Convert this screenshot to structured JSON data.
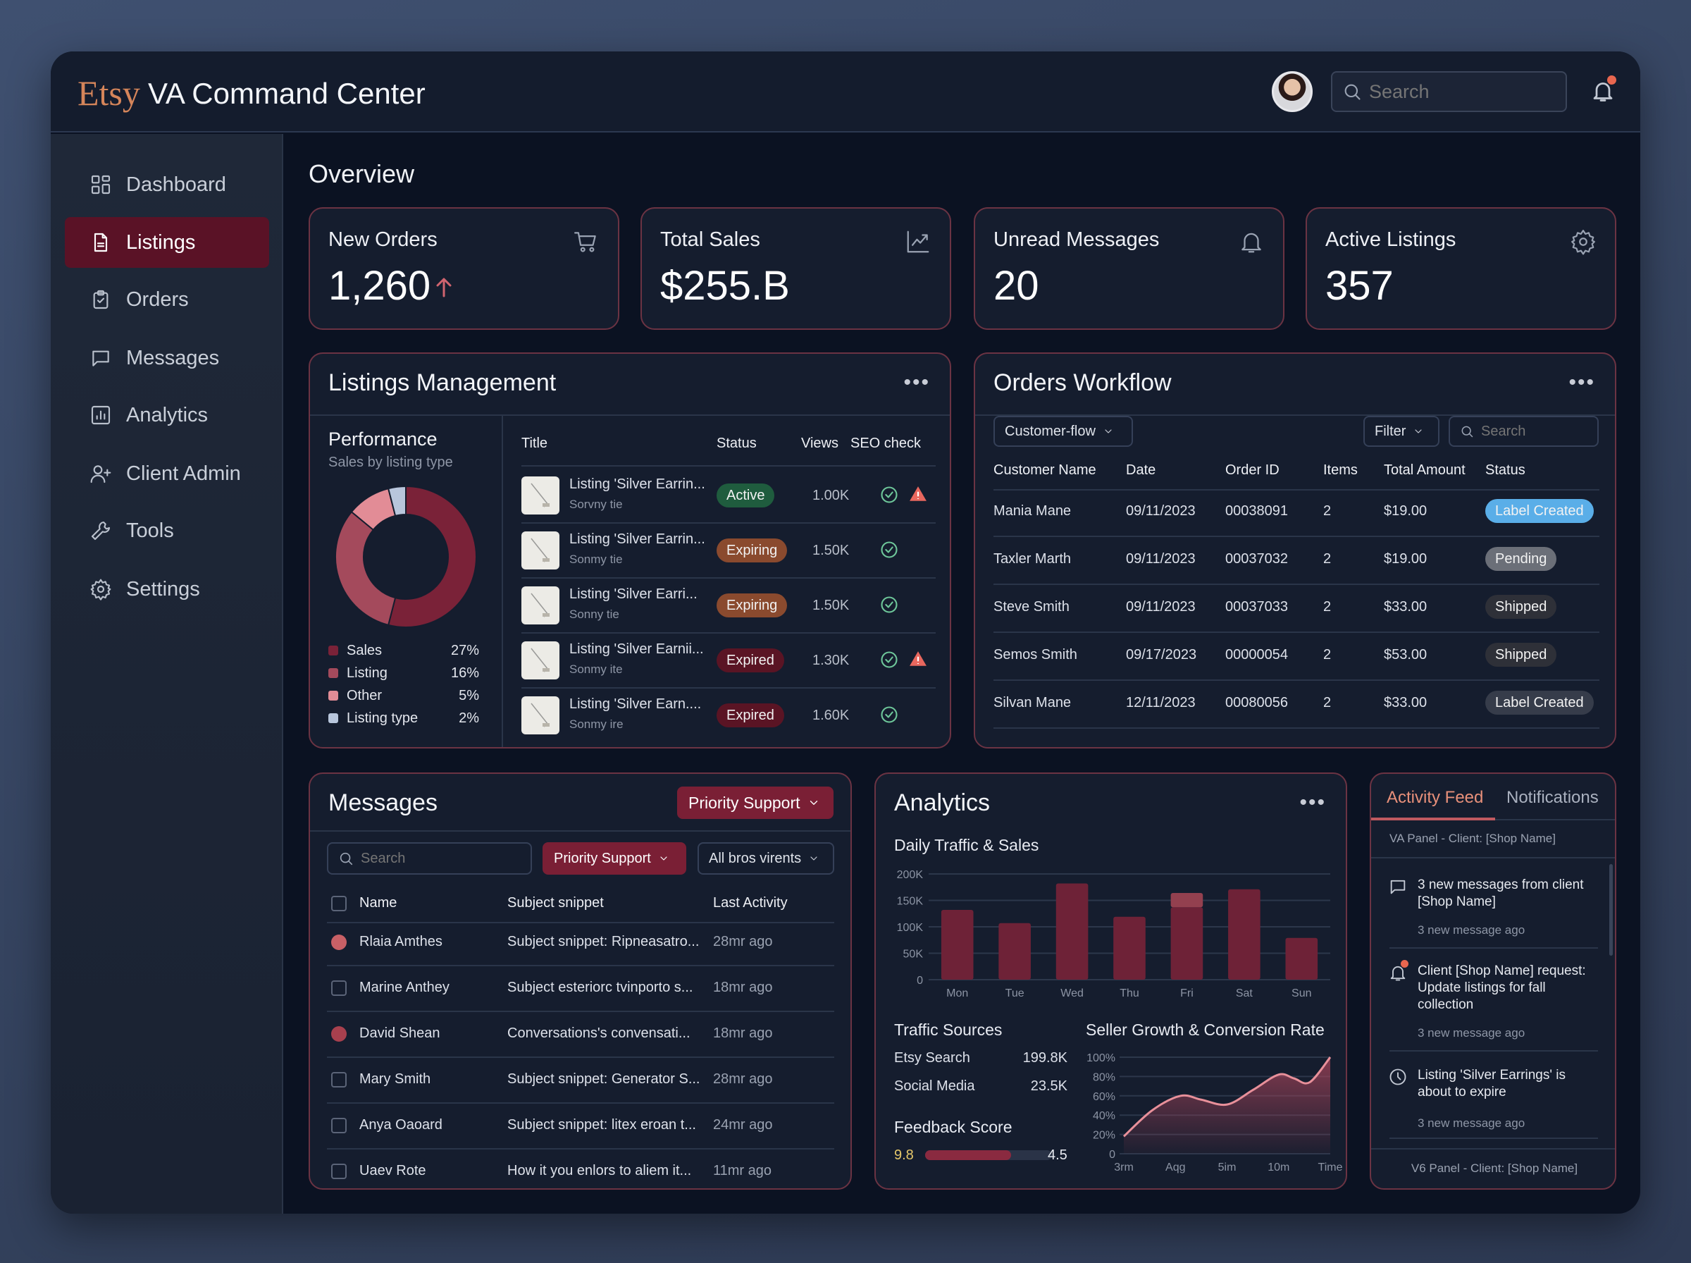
{
  "header": {
    "brand": "Etsy",
    "title": "VA Command Center",
    "search_placeholder": "Search",
    "avatar_icon": "user-avatar-icon",
    "notification_icon": "bell-icon",
    "notification_dot": true
  },
  "sidebar": {
    "items": [
      {
        "label": "Dashboard",
        "icon": "dashboard",
        "active": false
      },
      {
        "label": "Listings",
        "icon": "file",
        "active": true
      },
      {
        "label": "Orders",
        "icon": "clipboard",
        "active": false
      },
      {
        "label": "Messages",
        "icon": "message",
        "active": false
      },
      {
        "label": "Analytics",
        "icon": "chart",
        "active": false
      },
      {
        "label": "Client Admin",
        "icon": "user-plus",
        "active": false
      },
      {
        "label": "Tools",
        "icon": "wrench",
        "active": false
      },
      {
        "label": "Settings",
        "icon": "gear",
        "active": false
      }
    ]
  },
  "overview": {
    "title": "Overview",
    "kpis": [
      {
        "label": "New Orders",
        "value": "1,260",
        "icon": "cart",
        "trend": "up"
      },
      {
        "label": "Total Sales",
        "value": "$255.B",
        "icon": "trend",
        "sparkline": true
      },
      {
        "label": "Unread Messages",
        "value": "20",
        "icon": "bell"
      },
      {
        "label": "Active Listings",
        "value": "357",
        "icon": "gear"
      }
    ]
  },
  "listings": {
    "title": "Listings Management",
    "perf_title": "Performance",
    "perf_subtitle": "Sales by listing type",
    "columns": [
      "Title",
      "Status",
      "Views",
      "SEO check"
    ],
    "rows": [
      {
        "title": "Listing 'Silver Earrin...",
        "sub": "Sorvny tie",
        "status": "Active",
        "views": "1.00K",
        "seo_ok": true,
        "warning": true
      },
      {
        "title": "Listing 'Silver Earrin...",
        "sub": "Sonmy tie",
        "status": "Expiring",
        "views": "1.50K",
        "seo_ok": true,
        "warning": false
      },
      {
        "title": "Listing 'Silver Earri...",
        "sub": "Sonny tie",
        "status": "Expiring",
        "views": "1.50K",
        "seo_ok": true,
        "warning": false
      },
      {
        "title": "Listing 'Silver Earnii...",
        "sub": "Sonmy ite",
        "status": "Expired",
        "views": "1.30K",
        "seo_ok": true,
        "warning": true
      },
      {
        "title": "Listing 'Silver Earn....",
        "sub": "Sonmy ire",
        "status": "Expired",
        "views": "1.60K",
        "seo_ok": true,
        "warning": false
      }
    ]
  },
  "orders": {
    "title": "Orders Workflow",
    "flow_select": "Customer-flow",
    "filter_label": "Filter",
    "search_placeholder": "Search",
    "columns": [
      "Customer Name",
      "Date",
      "Order ID",
      "Items",
      "Total Amount",
      "Status"
    ],
    "rows": [
      [
        "Mania Mane",
        "09/11/2023",
        "00038091",
        "2",
        "$19.00",
        "Label Created"
      ],
      [
        "Taxler Marth",
        "09/11/2023",
        "00037032",
        "2",
        "$19.00",
        "Pending"
      ],
      [
        "Steve Smith",
        "09/11/2023",
        "00037033",
        "2",
        "$33.00",
        "Shipped"
      ],
      [
        "Semos Smith",
        "09/17/2023",
        "00000054",
        "2",
        "$53.00",
        "Shipped"
      ],
      [
        "Silvan Mane",
        "12/11/2023",
        "00080056",
        "2",
        "$33.00",
        "Label Created"
      ]
    ],
    "status_colors": [
      "#5aaee8",
      "#6b6f78",
      "#2e3038",
      "#2e3038",
      "#363c4a"
    ]
  },
  "messages": {
    "title": "Messages",
    "header_filter": "Priority Support",
    "search_placeholder": "Search",
    "filter1": "Priority Support",
    "filter2": "All bros virents",
    "columns": [
      "Name",
      "Subject snippet",
      "Last Activity"
    ],
    "rows": [
      {
        "name": "Rlaia Amthes",
        "subject": "Subject snippet: Ripneasatro...",
        "time": "28mr ago",
        "unread": true
      },
      {
        "name": "Marine Anthey",
        "subject": "Subject esteriorc tvinporto s...",
        "time": "18mr ago",
        "unread": false
      },
      {
        "name": "David Shean",
        "subject": "Conversations's convensati...",
        "time": "18mr ago",
        "unread": true
      },
      {
        "name": "Mary Smith",
        "subject": "Subject snippet: Generator S...",
        "time": "28mr ago",
        "unread": false
      },
      {
        "name": "Anya Oaoard",
        "subject": "Subject snippet: litex eroan t...",
        "time": "24mr ago",
        "unread": false
      },
      {
        "name": "Uaev Rote",
        "subject": "How it you enlors to aliem it...",
        "time": "11mr ago",
        "unread": false
      }
    ]
  },
  "analytics": {
    "title": "Analytics",
    "traffic_title": "Traffic Sources",
    "sources": [
      {
        "label": "Etsy Search",
        "value": "199.8K"
      },
      {
        "label": "Social Media",
        "value": "23.5K"
      }
    ],
    "feedback_title": "Feedback Score",
    "feedback_left": "9.8",
    "feedback_right": "4.5",
    "feedback_fill": 0.68
  },
  "activity": {
    "tabs": [
      "Activity Feed",
      "Notifications"
    ],
    "active_tab": 0,
    "header": "VA Panel - Client: [Shop Name]",
    "items": [
      {
        "icon": "message",
        "text": "3 new messages from client [Shop Name]",
        "sub": "3 new message ago"
      },
      {
        "icon": "bell",
        "text": "Client [Shop Name] request: Update listings for fall collection",
        "sub": "3 new message ago",
        "dot": true
      },
      {
        "icon": "clock",
        "text": "Listing 'Silver Earrings' is about to expire",
        "sub": "3 new message ago"
      }
    ],
    "footer": "V6 Panel - Client: [Shop Name]"
  },
  "colors": {
    "accent": "#7a1f35",
    "border": "#6b3343",
    "active_badge": "#1f5c3e",
    "expiring_badge": "#8a4a2e",
    "expired_badge": "#5a1424"
  },
  "chart_data": [
    {
      "type": "pie",
      "title": "",
      "labels": [
        "Sales",
        "Listing",
        "Other",
        "Listing type"
      ],
      "values": [
        27,
        16,
        5,
        2
      ],
      "unit": "%",
      "colors": [
        "#7a2238",
        "#a44a5c",
        "#e28c96",
        "#b8c6dc"
      ],
      "donut": true
    },
    {
      "type": "bar",
      "title": "Daily Traffic & Sales",
      "categories": [
        "Mon",
        "Tue",
        "Wed",
        "Thu",
        "Fri",
        "Sat",
        "Sun"
      ],
      "series": [
        {
          "values": [
            132000,
            107000,
            182000,
            119000,
            137000,
            171000,
            79000
          ]
        },
        {
          "values": [
            0,
            0,
            0,
            0,
            27000,
            0,
            0
          ]
        }
      ],
      "stacked": true,
      "ylim": [
        0,
        200000
      ],
      "yticks": [
        "0",
        "50K",
        "100K",
        "150K",
        "200K"
      ],
      "grid": true
    },
    {
      "type": "area",
      "title": "Seller Growth & Conversion Rate",
      "categories": [
        "3rm",
        "Aqg",
        "5im",
        "10m",
        "Time"
      ],
      "points": [
        [
          0,
          18
        ],
        [
          0.55,
          45
        ],
        [
          1.1,
          60
        ],
        [
          1.5,
          56
        ],
        [
          2,
          51
        ],
        [
          2.5,
          66
        ],
        [
          3,
          82
        ],
        [
          3.3,
          78
        ],
        [
          3.6,
          74
        ],
        [
          4,
          100
        ]
      ],
      "ylim": [
        0,
        100
      ],
      "yticks": [
        "0",
        "20%",
        "40%",
        "60%",
        "80%",
        "100%"
      ],
      "grid": true
    }
  ]
}
